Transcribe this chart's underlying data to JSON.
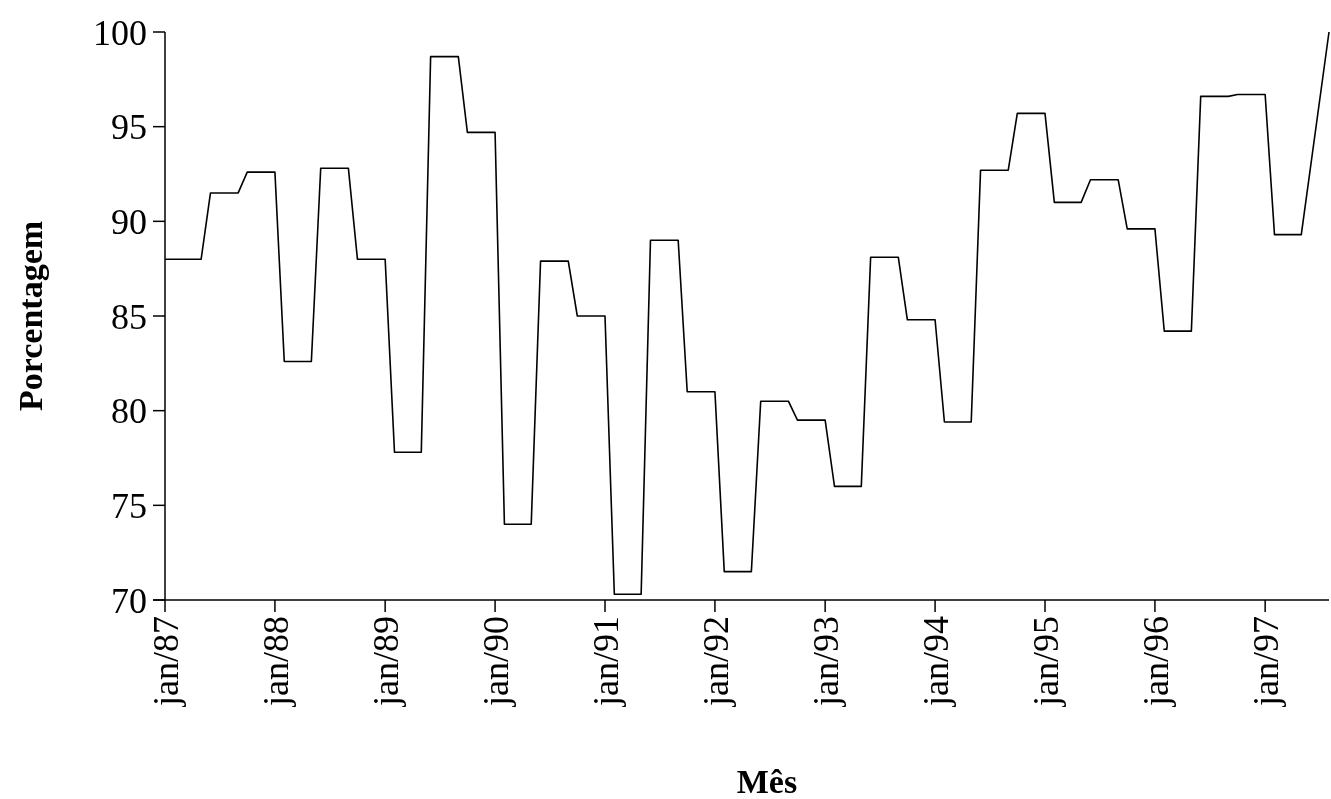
{
  "chart_data": {
    "type": "line",
    "xlabel": "Mês",
    "ylabel": "Porcentagem",
    "x": [
      "1987-01",
      "1987-05",
      "1987-06",
      "1987-09",
      "1987-10",
      "1988-01",
      "1988-02",
      "1988-05",
      "1988-06",
      "1988-09",
      "1988-10",
      "1989-01",
      "1989-02",
      "1989-05",
      "1989-06",
      "1989-09",
      "1989-10",
      "1990-01",
      "1990-02",
      "1990-05",
      "1990-06",
      "1990-09",
      "1990-10",
      "1991-01",
      "1991-02",
      "1991-05",
      "1991-06",
      "1991-09",
      "1991-10",
      "1992-01",
      "1992-02",
      "1992-05",
      "1992-06",
      "1992-09",
      "1992-10",
      "1993-01",
      "1993-02",
      "1993-05",
      "1993-06",
      "1993-09",
      "1993-10",
      "1994-01",
      "1994-02",
      "1994-05",
      "1994-06",
      "1994-09",
      "1994-10",
      "1995-01",
      "1995-02",
      "1995-05",
      "1995-06",
      "1995-09",
      "1995-10",
      "1996-01",
      "1996-02",
      "1996-05",
      "1996-06",
      "1996-09",
      "1996-10",
      "1997-01",
      "1997-02",
      "1997-05",
      "1997-08"
    ],
    "series": [
      {
        "color": "#000000",
        "values": [
          88.0,
          88.0,
          91.5,
          91.5,
          92.6,
          92.6,
          82.6,
          82.6,
          92.8,
          92.8,
          88.0,
          88.0,
          77.8,
          77.8,
          98.7,
          98.7,
          94.7,
          94.7,
          74.0,
          74.0,
          87.9,
          87.9,
          85.0,
          85.0,
          70.3,
          70.3,
          89.0,
          89.0,
          81.0,
          81.0,
          71.5,
          71.5,
          80.5,
          80.5,
          79.5,
          79.5,
          76.0,
          76.0,
          88.1,
          88.1,
          84.8,
          84.8,
          79.4,
          79.4,
          92.7,
          92.7,
          95.7,
          95.7,
          91.0,
          91.0,
          92.2,
          92.2,
          89.6,
          89.6,
          84.2,
          84.2,
          96.6,
          96.6,
          96.7,
          96.7,
          89.3,
          89.3,
          100
        ]
      }
    ],
    "xlim": [
      "1987-01",
      "1997-08"
    ],
    "xticks": [
      {
        "value": "1987-01",
        "label": "jan/87"
      },
      {
        "value": "1988-01",
        "label": "jan/88"
      },
      {
        "value": "1989-01",
        "label": "jan/89"
      },
      {
        "value": "1990-01",
        "label": "jan/90"
      },
      {
        "value": "1991-01",
        "label": "jan/91"
      },
      {
        "value": "1992-01",
        "label": "jan/92"
      },
      {
        "value": "1993-01",
        "label": "jan/93"
      },
      {
        "value": "1994-01",
        "label": "jan/94"
      },
      {
        "value": "1995-01",
        "label": "jan/95"
      },
      {
        "value": "1996-01",
        "label": "jan/96"
      },
      {
        "value": "1997-01",
        "label": "jan/97"
      }
    ],
    "ylim": [
      70,
      100
    ],
    "yticks": [
      70,
      75,
      80,
      85,
      90,
      95,
      100
    ],
    "grid": false,
    "marker": "none",
    "line_style": "solid"
  }
}
